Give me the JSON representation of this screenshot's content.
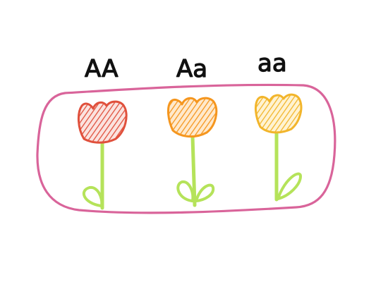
{
  "labels": {
    "aa_dominant": "AA",
    "aa_hetero": "Aa",
    "aa_recessive": "aa"
  },
  "colors": {
    "enclosure": "#d9649a",
    "stem": "#b5e35a",
    "flower_dominant_fill": "#ef8a7c",
    "flower_dominant_stroke": "#e0503c",
    "flower_hetero_fill": "#ffbb66",
    "flower_hetero_stroke": "#f5961e",
    "flower_recessive_fill": "#ffd877",
    "flower_recessive_stroke": "#f2b52b",
    "text": "#111111"
  }
}
